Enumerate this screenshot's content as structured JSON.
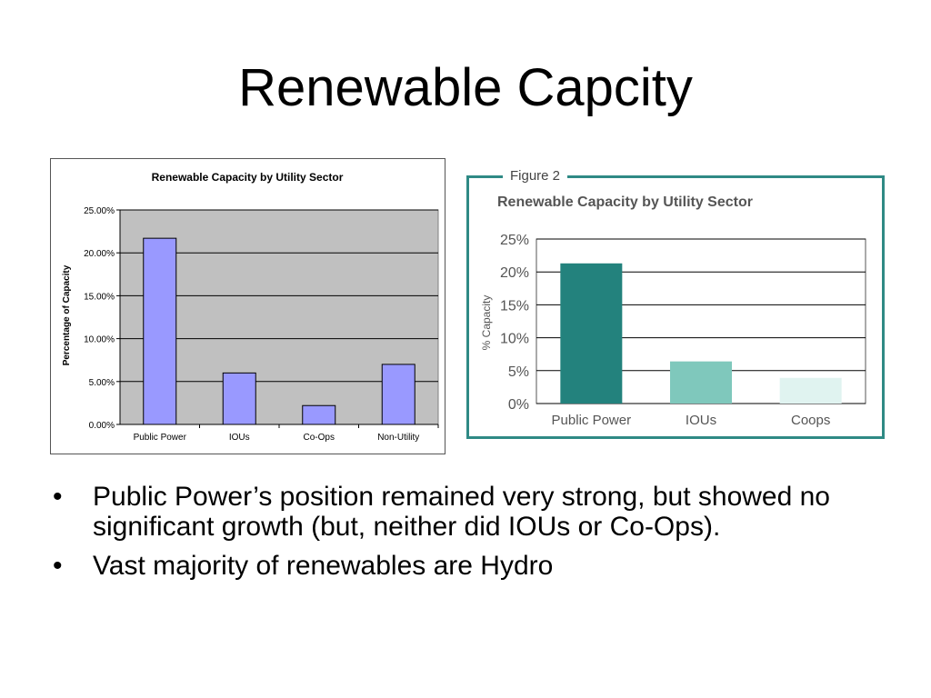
{
  "slide": {
    "title": "Renewable Capcity",
    "bullets": [
      "Public Power’s position remained very strong, but showed no significant growth (but, neither did IOUs or Co-Ops).",
      "Vast majority of renewables are Hydro"
    ],
    "bullet_glyph": "•"
  },
  "chart_data": [
    {
      "type": "bar",
      "title": "Renewable Capacity by Utility Sector",
      "ylabel": "Percentage of Capacity",
      "xlabel": "",
      "categories": [
        "Public Power",
        "IOUs",
        "Co-Ops",
        "Non-Utility"
      ],
      "values": [
        21.7,
        6.0,
        2.2,
        7.0
      ],
      "ylim": [
        0,
        25
      ],
      "yticks": [
        0,
        5,
        10,
        15,
        20,
        25
      ],
      "ytick_labels": [
        "0.00%",
        "5.00%",
        "10.00%",
        "15.00%",
        "20.00%",
        "25.00%"
      ],
      "grid": true,
      "colors": {
        "bar": "#9999ff",
        "plot_bg": "#c0c0c0"
      }
    },
    {
      "type": "bar",
      "figure_label": "Figure 2",
      "title": "Renewable Capacity by Utility Sector",
      "ylabel": "% Capacity",
      "xlabel": "",
      "categories": [
        "Public Power",
        "IOUs",
        "Coops"
      ],
      "values": [
        21.3,
        6.4,
        3.9
      ],
      "ylim": [
        0,
        25
      ],
      "yticks": [
        0,
        5,
        10,
        15,
        20,
        25
      ],
      "ytick_labels": [
        "0%",
        "5%",
        "10%",
        "15%",
        "20%",
        "25%"
      ],
      "grid": true,
      "colors": {
        "bars": [
          "#23827d",
          "#7fc8bc",
          "#e0f3f0"
        ],
        "frame": "#2f8a85"
      }
    }
  ]
}
